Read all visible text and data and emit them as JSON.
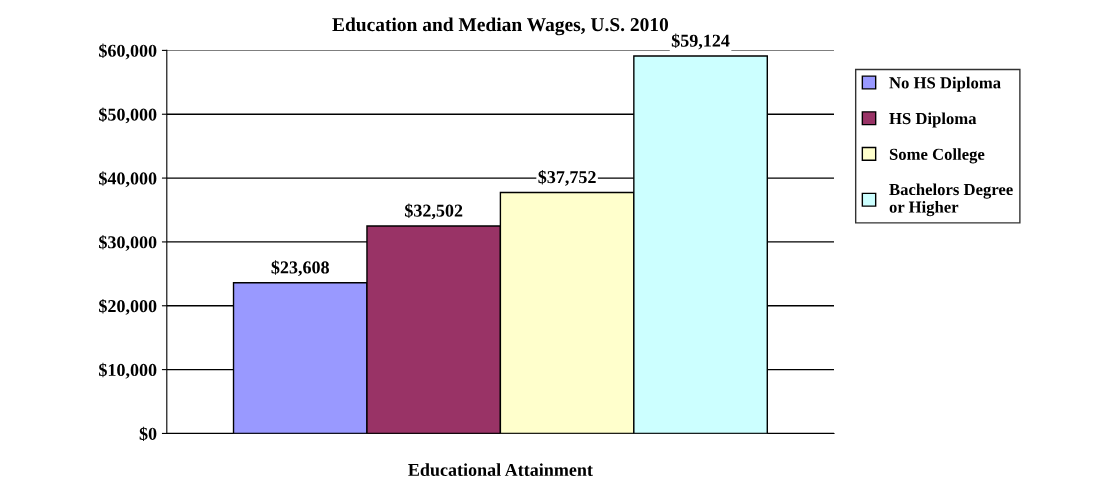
{
  "chart_data": {
    "type": "bar",
    "title": "Education and Median Wages, U.S. 2010",
    "xlabel": "Educational Attainment",
    "categories": [
      null
    ],
    "series": [
      {
        "name": "No HS Diploma",
        "color": "#9999ff",
        "values": [
          23608
        ],
        "value_labels": [
          "$23,608"
        ]
      },
      {
        "name": "HS Diploma",
        "color": "#993366",
        "values": [
          32502
        ],
        "value_labels": [
          "$32,502"
        ]
      },
      {
        "name": "Some College",
        "color": "#ffffcc",
        "values": [
          37752
        ],
        "value_labels": [
          "$37,752"
        ]
      },
      {
        "name": "Bachelors Degree\nor Higher",
        "color": "#ccffff",
        "values": [
          59124
        ],
        "value_labels": [
          "$59,124"
        ]
      }
    ],
    "ylim": [
      0,
      60000
    ],
    "yticks": [
      {
        "value": 0,
        "label": "$0"
      },
      {
        "value": 10000,
        "label": "$10,000"
      },
      {
        "value": 20000,
        "label": "$20,000"
      },
      {
        "value": 30000,
        "label": "$30,000"
      },
      {
        "value": 40000,
        "label": "$40,000"
      },
      {
        "value": 50000,
        "label": "$50,000"
      },
      {
        "value": 60000,
        "label": "$60,000"
      }
    ],
    "grid": "y",
    "legend": "right"
  }
}
